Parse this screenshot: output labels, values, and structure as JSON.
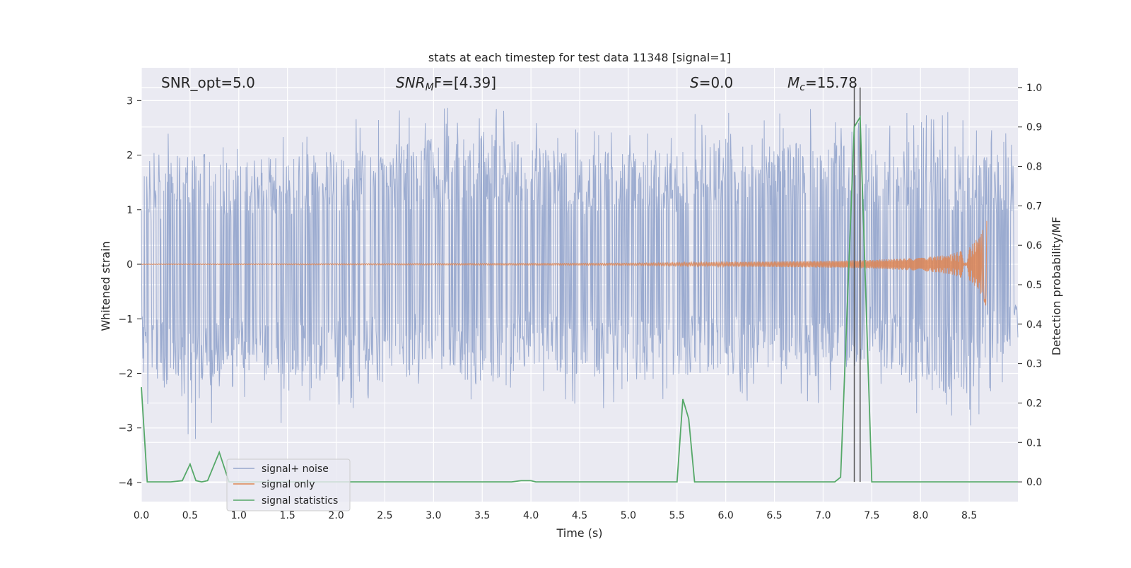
{
  "chart_data": {
    "type": "line",
    "title": "stats at each timestep for test data 11348 [signal=1]",
    "xlabel": "Time (s)",
    "ylabel_left": "Whitened strain",
    "ylabel_right": "Detection probability/MF",
    "xlim": [
      0.0,
      9.0
    ],
    "ylim_left": [
      -4.35,
      3.6
    ],
    "ylim_right": [
      -0.05,
      1.05
    ],
    "xticks": [
      "0.0",
      "0.5",
      "1.0",
      "1.5",
      "2.0",
      "2.5",
      "3.0",
      "3.5",
      "4.0",
      "4.5",
      "5.0",
      "5.5",
      "6.0",
      "6.5",
      "7.0",
      "7.5",
      "8.0",
      "8.5"
    ],
    "yticks_left": [
      "−4",
      "−3",
      "−2",
      "−1",
      "0",
      "1",
      "2",
      "3"
    ],
    "yticks_right": [
      "0.0",
      "0.1",
      "0.2",
      "0.3",
      "0.4",
      "0.5",
      "0.6",
      "0.7",
      "0.8",
      "0.9",
      "1.0"
    ],
    "grid": true,
    "legend_position": "lower-left",
    "annotations": {
      "snr_opt": "SNR_opt=5.0",
      "snr_mf_main": "SNR",
      "snr_mf_sub": "M",
      "snr_mf_rest": "F=[4.39]",
      "s_main": "S",
      "s_rest": "=0.0",
      "mc_main": "M",
      "mc_sub": "c",
      "mc_rest": "=15.78"
    },
    "vertical_lines_x": [
      7.32,
      7.38
    ],
    "series": [
      {
        "name": "signal+ noise",
        "color": "#97a8cd",
        "envelope_x": [
          0.0,
          0.5,
          1.0,
          1.5,
          2.0,
          2.5,
          3.0,
          3.5,
          4.0,
          4.5,
          5.0,
          5.5,
          6.0,
          6.5,
          7.0,
          7.5,
          8.0,
          8.5,
          9.0
        ],
        "upper": [
          2.1,
          2.7,
          2.4,
          2.5,
          2.6,
          2.8,
          2.9,
          3.1,
          2.7,
          2.6,
          2.6,
          2.7,
          3.2,
          2.8,
          2.9,
          2.6,
          2.9,
          2.7,
          2.4
        ],
        "lower": [
          -2.5,
          -3.3,
          -2.5,
          -3.0,
          -2.7,
          -2.7,
          -2.5,
          -2.8,
          -2.4,
          -2.6,
          -2.7,
          -2.6,
          -2.6,
          -2.4,
          -2.6,
          -2.2,
          -2.9,
          -3.0,
          -1.8
        ]
      },
      {
        "name": "signal only",
        "color": "#dd8452",
        "x": [
          0.0,
          5.0,
          6.0,
          7.0,
          7.5,
          8.0,
          8.3,
          8.5,
          8.62,
          8.68
        ],
        "amplitude": [
          0.005,
          0.02,
          0.04,
          0.06,
          0.08,
          0.12,
          0.18,
          0.3,
          0.55,
          0.8
        ]
      },
      {
        "name": "signal statistics",
        "color": "#55a868",
        "axis": "right",
        "x": [
          0.0,
          0.06,
          0.12,
          0.3,
          0.42,
          0.5,
          0.56,
          0.62,
          0.68,
          0.8,
          0.9,
          1.0,
          3.8,
          3.9,
          4.0,
          4.05,
          5.5,
          5.56,
          5.62,
          5.68,
          7.12,
          7.18,
          7.32,
          7.38,
          7.5,
          9.0
        ],
        "values": [
          0.24,
          0.0,
          0.0,
          0.0,
          0.003,
          0.045,
          0.003,
          0.0,
          0.003,
          0.075,
          0.0,
          0.0,
          0.0,
          0.003,
          0.003,
          0.0,
          0.0,
          0.21,
          0.16,
          0.0,
          0.0,
          0.012,
          0.9,
          0.925,
          0.0,
          0.0
        ]
      }
    ]
  }
}
